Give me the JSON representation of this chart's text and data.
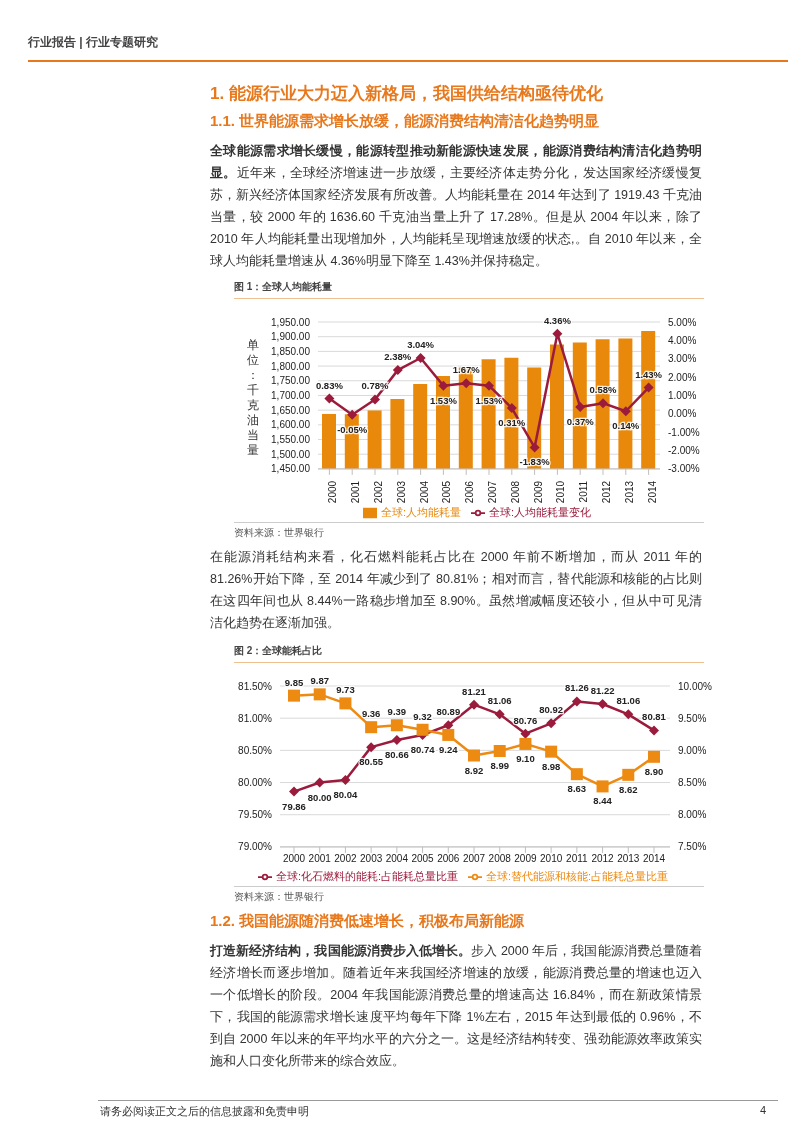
{
  "chart_data": [
    {
      "type": "bar",
      "title": "图 1：全球人均能耗量",
      "ylabel": "单位：千克油当量",
      "categories": [
        "2000",
        "2001",
        "2002",
        "2003",
        "2004",
        "2005",
        "2006",
        "2007",
        "2008",
        "2009",
        "2010",
        "2011",
        "2012",
        "2013",
        "2014"
      ],
      "series": [
        {
          "name": "全球:人均能耗量",
          "type": "bar",
          "color": "#e8890c",
          "values": [
            1637,
            1636,
            1649,
            1688,
            1739,
            1766,
            1795,
            1823,
            1828,
            1795,
            1873,
            1880,
            1891,
            1894,
            1919
          ]
        },
        {
          "name": "全球:人均能耗量变化",
          "type": "line",
          "axis": "y2",
          "color": "#9b1b3c",
          "marker": "diamond",
          "values": [
            0.83,
            -0.05,
            0.78,
            2.38,
            3.04,
            1.53,
            1.67,
            1.53,
            0.31,
            -1.83,
            4.36,
            0.37,
            0.58,
            0.14,
            1.43
          ],
          "value_labels": [
            "0.83%",
            "-0.05%",
            "0.78%",
            "2.38%",
            "3.04%",
            "1.53%",
            "1.67%",
            "1.53%",
            "0.31%",
            "-1.83%",
            "4.36%",
            "0.37%",
            "0.58%",
            "0.14%",
            "1.43%"
          ]
        }
      ],
      "ylim": [
        1450,
        1950
      ],
      "yticks": [
        {
          "value": 1450,
          "label": "1,450.00"
        },
        {
          "value": 1500,
          "label": "1,500.00"
        },
        {
          "value": 1550,
          "label": "1,550.00"
        },
        {
          "value": 1600,
          "label": "1,600.00"
        },
        {
          "value": 1650,
          "label": "1,650.00"
        },
        {
          "value": 1700,
          "label": "1,700.00"
        },
        {
          "value": 1750,
          "label": "1,750.00"
        },
        {
          "value": 1800,
          "label": "1,800.00"
        },
        {
          "value": 1850,
          "label": "1,850.00"
        },
        {
          "value": 1900,
          "label": "1,900.00"
        },
        {
          "value": 1950,
          "label": "1,950.00"
        }
      ],
      "y2lim": [
        -3,
        5
      ],
      "y2ticks": [
        {
          "value": -3,
          "label": "-3.00%"
        },
        {
          "value": -2,
          "label": "-2.00%"
        },
        {
          "value": -1,
          "label": "-1.00%"
        },
        {
          "value": 0,
          "label": "0.00%"
        },
        {
          "value": 1,
          "label": "1.00%"
        },
        {
          "value": 2,
          "label": "2.00%"
        },
        {
          "value": 3,
          "label": "3.00%"
        },
        {
          "value": 4,
          "label": "4.00%"
        },
        {
          "value": 5,
          "label": "5.00%"
        }
      ],
      "grid": "y",
      "legend": "bottom",
      "annotations": [
        "行业报告 | 行业专题研究",
        "1. 能源行业大力迈入新格局，我国供给结构亟待优化",
        "1.1. 世界能源需求增长放缓，能源消费结构清洁化趋势明显",
        "全球能源需求增长缓慢，能源转型推动新能源快速发展，能源消费结构清洁化趋势明显。",
        "近年来，全球经济增速进一步放缓，主要经济体走势分化，发达国家经济缓慢复苏，新兴经济体国家经济发展有所改善。人均能耗量在 2014 年达到了 1919.43 千克油当量，较 2000 年的 1636.60 千克油当量上升了 17.28%。但是从 2004 年以来，除了 2010 年人均能耗量出现增加外，人均能耗呈现增速放缓的状态,。自 2010 年以来，全球人均能耗量增速从 4.36%明显下降至 1.43%并保持稳定。",
        "资料来源：世界银行"
      ]
    },
    {
      "type": "line",
      "title": "图 2：全球能耗占比",
      "categories": [
        "2000",
        "2001",
        "2002",
        "2003",
        "2004",
        "2005",
        "2006",
        "2007",
        "2008",
        "2009",
        "2010",
        "2011",
        "2012",
        "2013",
        "2014"
      ],
      "series": [
        {
          "name": "全球:化石燃料的能耗:占能耗总量比重",
          "color": "#9b1b3c",
          "marker": "diamond",
          "values": [
            79.86,
            80.0,
            80.04,
            80.55,
            80.66,
            80.74,
            80.89,
            81.21,
            81.06,
            80.76,
            80.92,
            81.26,
            81.22,
            81.06,
            80.81
          ],
          "value_labels": [
            "79.86",
            "80.00",
            "80.04",
            "80.55",
            "80.66",
            "80.74",
            "80.89",
            "81.21",
            "81.06",
            "80.76",
            "80.92",
            "81.26",
            "81.22",
            "81.06",
            "80.81"
          ]
        },
        {
          "name": "全球:替代能源和核能:占能耗总量比重",
          "color": "#ed8a12",
          "marker": "square",
          "axis": "y2",
          "values": [
            9.85,
            9.87,
            9.73,
            9.36,
            9.39,
            9.32,
            9.24,
            8.92,
            8.99,
            9.1,
            8.98,
            8.63,
            8.44,
            8.62,
            8.9
          ],
          "value_labels": [
            "9.85",
            "9.87",
            "9.73",
            "9.36",
            "9.39",
            "9.32",
            "9.24",
            "8.92",
            "8.99",
            "9.10",
            "8.98",
            "8.63",
            "8.44",
            "8.62",
            "8.90"
          ]
        }
      ],
      "ylim": [
        79,
        81.5
      ],
      "yticks": [
        {
          "value": 79,
          "label": "79.00%"
        },
        {
          "value": 79.5,
          "label": "79.50%"
        },
        {
          "value": 80,
          "label": "80.00%"
        },
        {
          "value": 80.5,
          "label": "80.50%"
        },
        {
          "value": 81,
          "label": "81.00%"
        },
        {
          "value": 81.5,
          "label": "81.50%"
        }
      ],
      "y2lim": [
        7.5,
        10
      ],
      "y2ticks": [
        {
          "value": 7.5,
          "label": "7.50%"
        },
        {
          "value": 8,
          "label": "8.00%"
        },
        {
          "value": 8.5,
          "label": "8.50%"
        },
        {
          "value": 9,
          "label": "9.00%"
        },
        {
          "value": 9.5,
          "label": "9.50%"
        },
        {
          "value": 10,
          "label": "10.00%"
        }
      ],
      "grid": "y",
      "legend": "bottom",
      "annotations": [
        "在能源消耗结构来看，化石燃料能耗占比在 2000 年前不断增加，而从 2011 年的 81.26%开始下降，至 2014 年减少到了 80.81%；相对而言，替代能源和核能的占比则在这四年间也从 8.44%一路稳步增加至 8.90%。虽然增减幅度还较小，但从中可见清洁化趋势在逐渐加强。",
        "资料来源：世界银行",
        "1.2. 我国能源随消费低速增长，积极布局新能源",
        "打造新经济结构，我国能源消费步入低增长。",
        "步入 2000 年后，我国能源消费总量随着经济增长而逐步增加。随着近年来我国经济增速的放缓，能源消费总量的增速也迈入一个低增长的阶段。2004 年我国能源消费总量的增速高达 16.84%，而在新政策情景下，我国的能源需求增长速度平均每年下降 1%左右，2015 年达到最低的 0.96%，不到自 2000 年以来的年平均水平的六分之一。这是经济结构转变、强劲能源效率政策实施和人口变化所带来的综合效应。",
        "请务必阅读正文之后的信息披露和免责申明",
        "4"
      ]
    }
  ]
}
